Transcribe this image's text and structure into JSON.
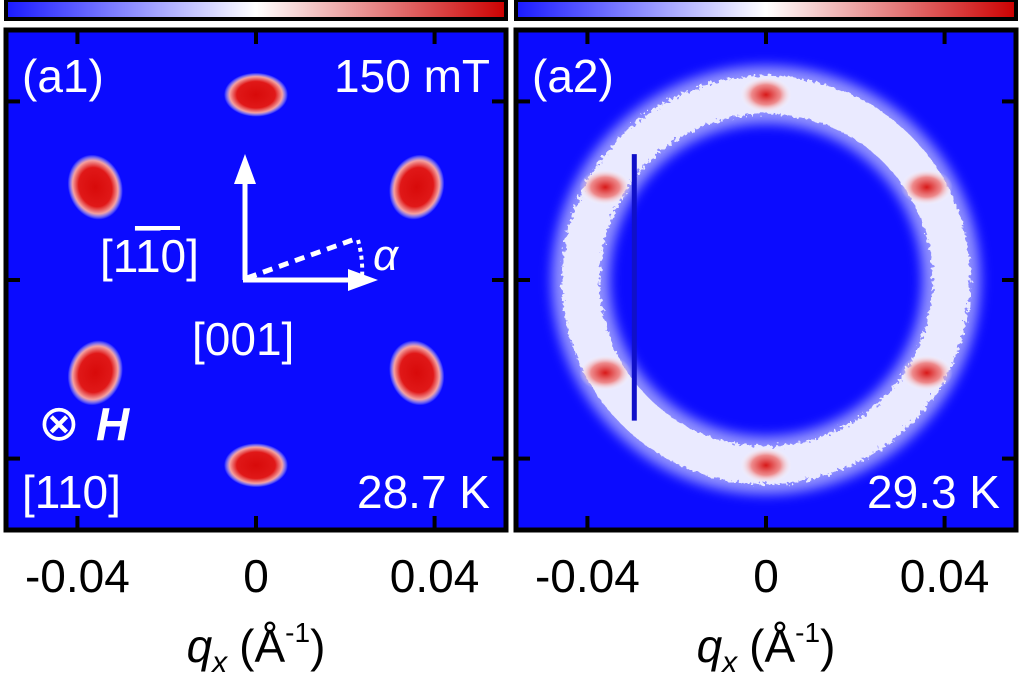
{
  "colors": {
    "background": "#0b0bff",
    "colorbar_low": "#1a1aff",
    "colorbar_mid": "#ffffff",
    "colorbar_high": "#cc0000",
    "spot": "#e01010",
    "frame": "#000000",
    "annotation": "#ffffff"
  },
  "chart_data": [
    {
      "type": "heatmap",
      "panel_label": "(a1)",
      "field": "150 mT",
      "temperature": "28.7 K",
      "xlabel": "q",
      "xlabel_sub": "x",
      "xlabel_unit": "(Å",
      "xlabel_exp": "-1",
      "xlabel_close": ")",
      "xlim": [
        -0.056,
        0.056
      ],
      "ylim": [
        -0.056,
        0.056
      ],
      "xtick_labels": [
        "-0.04",
        "0",
        "0.04"
      ],
      "xticks": [
        -0.04,
        0,
        0.04
      ],
      "yticks": [
        -0.04,
        0,
        0.04
      ],
      "colorbar": "blue-white-red, no tick labels",
      "pattern": "six-fold Bragg spots",
      "spots": [
        {
          "qx": 0.0,
          "qy": 0.0415
        },
        {
          "qx": 0.036,
          "qy": 0.0208
        },
        {
          "qx": 0.036,
          "qy": -0.0208
        },
        {
          "qx": 0.0,
          "qy": -0.0415
        },
        {
          "qx": -0.036,
          "qy": -0.0208
        },
        {
          "qx": -0.036,
          "qy": 0.0208
        }
      ],
      "annotations": {
        "axis_up": "[1",
        "axis_up_bar": "1",
        "axis_up_end": "0]",
        "axis_right": "[001]",
        "angle": "α",
        "field_symbol": "⊗",
        "field_name": "H",
        "field_direction": "[110]"
      }
    },
    {
      "type": "heatmap",
      "panel_label": "(a2)",
      "temperature": "29.3 K",
      "xlabel": "q",
      "xlabel_sub": "x",
      "xlabel_unit": "(Å",
      "xlabel_exp": "-1",
      "xlabel_close": ")",
      "xlim": [
        -0.056,
        0.056
      ],
      "ylim": [
        -0.056,
        0.056
      ],
      "xtick_labels": [
        "-0.04",
        "0",
        "0.04"
      ],
      "xticks": [
        -0.04,
        0,
        0.04
      ],
      "yticks": [
        -0.04,
        0,
        0.04
      ],
      "colorbar": "blue-white-red, no tick labels",
      "pattern": "ring with six weak peaks",
      "ring_radius": 0.0415,
      "spots": [
        {
          "qx": 0.0,
          "qy": 0.0415
        },
        {
          "qx": 0.036,
          "qy": 0.0208
        },
        {
          "qx": 0.036,
          "qy": -0.0208
        },
        {
          "qx": 0.0,
          "qy": -0.0415
        },
        {
          "qx": -0.036,
          "qy": -0.0208
        },
        {
          "qx": -0.036,
          "qy": 0.0208
        }
      ]
    }
  ]
}
